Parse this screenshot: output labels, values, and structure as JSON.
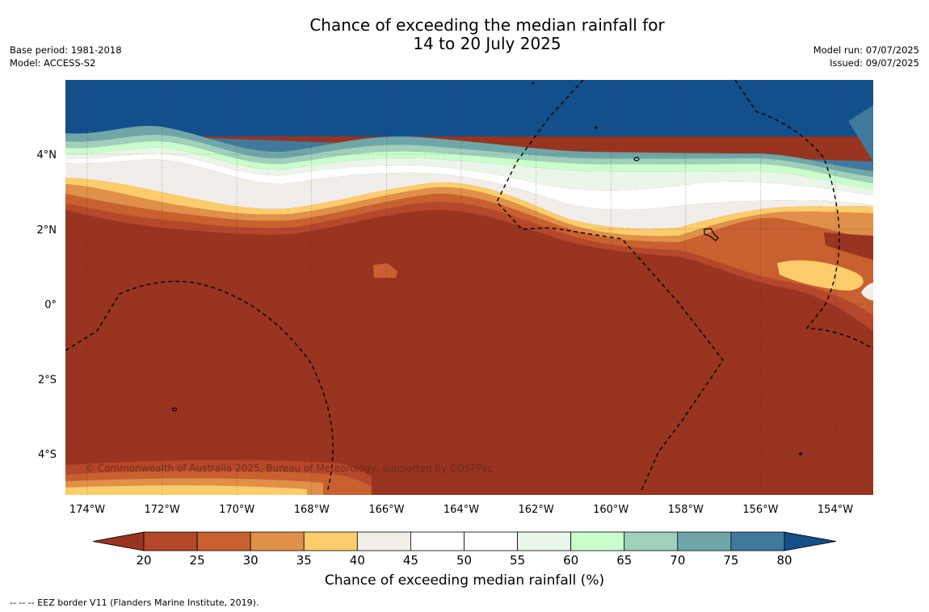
{
  "title_line1": "Chance of exceeding the median rainfall for",
  "title_line2": "14 to 20 July 2025",
  "meta_left": [
    "Base period: 1981-2018",
    "Model: ACCESS-S2"
  ],
  "meta_right": [
    "Model run: 07/07/2025",
    "Issued: 09/07/2025"
  ],
  "copyright": "© Commonwealth of Australia 2025, Bureau of Meteorology, supported by COSPPac",
  "lon_ticks": [
    "174°W",
    "172°W",
    "170°W",
    "168°W",
    "166°W",
    "164°W",
    "162°W",
    "160°W",
    "158°W",
    "156°W",
    "154°W"
  ],
  "lat_ticks": [
    "4°N",
    "2°N",
    "0°",
    "2°S",
    "4°S"
  ],
  "colorbar": {
    "title": "Chance of exceeding median rainfall (%)",
    "labels": [
      "20",
      "25",
      "30",
      "35",
      "40",
      "45",
      "50",
      "55",
      "60",
      "65",
      "70",
      "75",
      "80"
    ],
    "colors": [
      "#b5472a",
      "#c8602f",
      "#e09049",
      "#fecd6b",
      "#f1eeea",
      "#ffffff",
      "#ffffff",
      "#ebf6ea",
      "#c9ffcc",
      "#9ed0bc",
      "#6fa7a8",
      "#41799e"
    ],
    "under_color": "#983420",
    "over_color": "#134f8a"
  },
  "footer": "--  --  -- EEZ border V11 (Flanders Marine Institute, 2019)."
}
